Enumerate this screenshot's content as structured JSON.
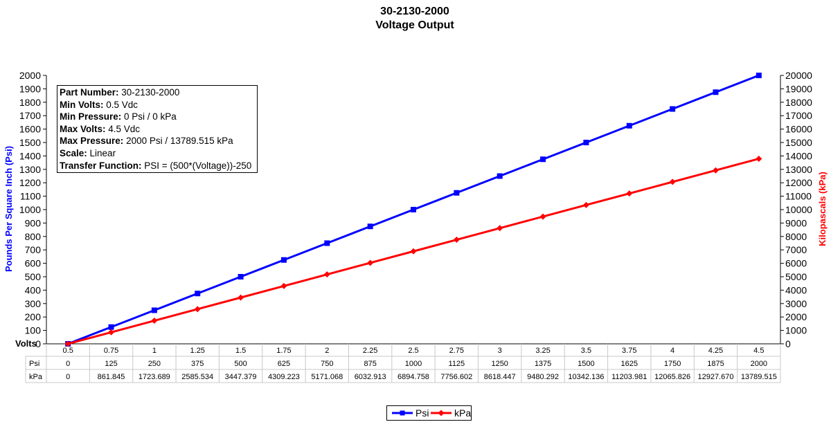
{
  "chart_data": {
    "type": "line",
    "title": "30-2130-2000",
    "subtitle": "Voltage Output",
    "xlabel": "Volts",
    "ylabel_left": "Pounds Per Square Inch (Psi)",
    "ylabel_right": "Kilopascals (kPa)",
    "x_ticks": [
      "0.5",
      "0.75",
      "1",
      "1.25",
      "1.5",
      "1.75",
      "2",
      "2.25",
      "2.5",
      "2.75",
      "3",
      "3.25",
      "3.5",
      "3.75",
      "4",
      "4.25",
      "4.5"
    ],
    "x": [
      0.5,
      0.75,
      1,
      1.25,
      1.5,
      1.75,
      2,
      2.25,
      2.5,
      2.75,
      3,
      3.25,
      3.5,
      3.75,
      4,
      4.25,
      4.5
    ],
    "ylim_left": [
      0,
      2000
    ],
    "ylim_right": [
      0,
      20000
    ],
    "y_ticks_left": [
      "0",
      "100",
      "200",
      "300",
      "400",
      "500",
      "600",
      "700",
      "800",
      "900",
      "1000",
      "1100",
      "1200",
      "1300",
      "1400",
      "1500",
      "1600",
      "1700",
      "1800",
      "1900",
      "2000"
    ],
    "y_ticks_right": [
      "0",
      "1000",
      "2000",
      "3000",
      "4000",
      "5000",
      "6000",
      "7000",
      "8000",
      "9000",
      "10000",
      "11000",
      "12000",
      "13000",
      "14000",
      "15000",
      "16000",
      "17000",
      "18000",
      "19000",
      "20000"
    ],
    "grid": false,
    "legend_position": "bottom",
    "series": [
      {
        "name": "Psi",
        "axis": "left",
        "color": "#0000ff",
        "marker": "square",
        "values": [
          0,
          125,
          250,
          375,
          500,
          625,
          750,
          875,
          1000,
          1125,
          1250,
          1375,
          1500,
          1625,
          1750,
          1875,
          2000
        ],
        "table_values": [
          "0",
          "125",
          "250",
          "375",
          "500",
          "625",
          "750",
          "875",
          "1000",
          "1125",
          "1250",
          "1375",
          "1500",
          "1625",
          "1750",
          "1875",
          "2000"
        ]
      },
      {
        "name": "kPa",
        "axis": "right",
        "color": "#ff0000",
        "marker": "diamond",
        "values": [
          0,
          861.845,
          1723.689,
          2585.534,
          3447.379,
          4309.223,
          5171.068,
          6032.913,
          6894.758,
          7756.602,
          8618.447,
          9480.292,
          10342.136,
          11203.981,
          12065.826,
          12927.67,
          13789.515
        ],
        "table_values": [
          "0",
          "861.845",
          "1723.689",
          "2585.534",
          "3447.379",
          "4309.223",
          "5171.068",
          "6032.913",
          "6894.758",
          "7756.602",
          "8618.447",
          "9480.292",
          "10342.136",
          "11203.981",
          "12065.826",
          "12927.670",
          "13789.515"
        ]
      }
    ],
    "table_row_labels": [
      "Psi",
      "kPa"
    ]
  },
  "info_box": [
    {
      "label": "Part Number:",
      "value": " 30-2130-2000"
    },
    {
      "label": "Min Volts:",
      "value": " 0.5 Vdc"
    },
    {
      "label": "Min Pressure:",
      "value": " 0 Psi / 0 kPa"
    },
    {
      "label": "Max Volts:",
      "value": " 4.5 Vdc"
    },
    {
      "label": "Max Pressure:",
      "value": " 2000 Psi / 13789.515 kPa"
    },
    {
      "label": "Scale:",
      "value": " Linear"
    },
    {
      "label": "Transfer Function:",
      "value": " PSI = (500*(Voltage))-250"
    }
  ],
  "legend": [
    {
      "label": "Psi",
      "color": "#0000ff",
      "marker": "square"
    },
    {
      "label": "kPa",
      "color": "#ff0000",
      "marker": "diamond"
    }
  ]
}
